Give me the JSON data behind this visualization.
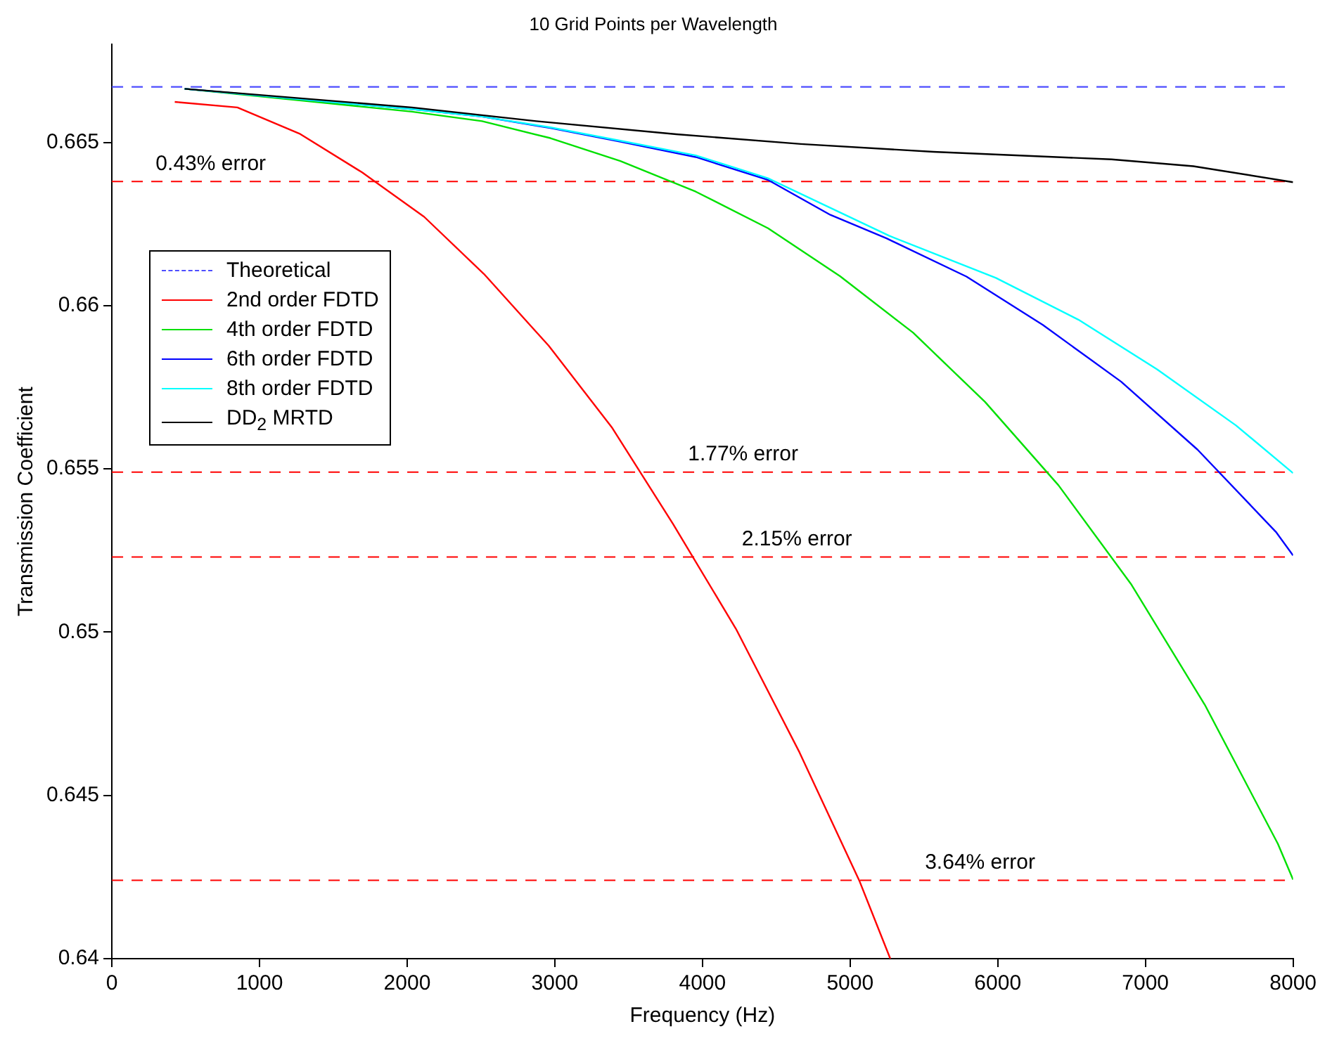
{
  "chart_data": {
    "type": "line",
    "title": "10 Grid Points per Wavelength",
    "xlabel": "Frequency (Hz)",
    "ylabel": "Transmission Coefficient",
    "xlim": [
      0,
      8000
    ],
    "xticks": [
      0,
      1000,
      2000,
      3000,
      4000,
      5000,
      6000,
      7000,
      8000
    ],
    "ylim": [
      0.64,
      0.668
    ],
    "yticks": [
      0.64,
      0.645,
      0.65,
      0.655,
      0.66,
      0.665
    ],
    "grid": false,
    "legend": "top left",
    "marker": "none",
    "series": [
      {
        "name": "Theoretical",
        "color": "#4d4dff",
        "line_style": "dashed",
        "x": [
          0,
          8000
        ],
        "values": [
          0.6667,
          0.6667
        ]
      },
      {
        "name": "2nd order FDTD",
        "color": "#ff0000",
        "x": [
          426,
          850,
          1270,
          1695,
          2115,
          2520,
          2959,
          3385,
          3801,
          4227,
          4657,
          5065,
          5272
        ],
        "values": [
          0.66624,
          0.66607,
          0.66527,
          0.66408,
          0.66272,
          0.66097,
          0.65877,
          0.65628,
          0.65331,
          0.6501,
          0.64632,
          0.64236,
          0.64
        ]
      },
      {
        "name": "4th order FDTD",
        "color": "#00e000",
        "x": [
          493,
          2032,
          2507,
          2970,
          3444,
          3955,
          4444,
          4932,
          5427,
          5914,
          6411,
          6906,
          7403,
          7897,
          8000
        ],
        "values": [
          0.66664,
          0.66594,
          0.66565,
          0.66513,
          0.66443,
          0.66349,
          0.66237,
          0.6609,
          0.65917,
          0.65705,
          0.6545,
          0.65145,
          0.64777,
          0.64352,
          0.64242
        ]
      },
      {
        "name": "6th order FDTD",
        "color": "#0000ff",
        "x": [
          493,
          2032,
          2507,
          2970,
          3444,
          3955,
          4444,
          4866,
          5247,
          5788,
          6305,
          6836,
          7353,
          7884,
          8000
        ],
        "values": [
          0.66664,
          0.66602,
          0.66579,
          0.66544,
          0.66502,
          0.66455,
          0.66385,
          0.66278,
          0.66206,
          0.66089,
          0.65941,
          0.65767,
          0.65559,
          0.65307,
          0.65235
        ]
      },
      {
        "name": "8th order FDTD",
        "color": "#00ffff",
        "x": [
          493,
          2032,
          2507,
          2970,
          3444,
          3955,
          4444,
          5264,
          5987,
          6546,
          7079,
          7614,
          8000
        ],
        "values": [
          0.66664,
          0.66602,
          0.66579,
          0.66546,
          0.66505,
          0.6646,
          0.6639,
          0.66214,
          0.66085,
          0.65957,
          0.65805,
          0.65633,
          0.65487
        ]
      },
      {
        "name": "DD$_{2}$ MRTD",
        "color": "#000000",
        "x": [
          493,
          2032,
          2874,
          3823,
          4666,
          5564,
          6771,
          7325,
          8000
        ],
        "values": [
          0.66664,
          0.66607,
          0.66565,
          0.66525,
          0.66495,
          0.66471,
          0.66448,
          0.66427,
          0.66378
        ]
      }
    ],
    "ref_lines": [
      {
        "axis": "y",
        "value": 0.6638,
        "color": "#ff0000",
        "line_style": "dashed"
      },
      {
        "axis": "y",
        "value": 0.6549,
        "color": "#ff0000",
        "line_style": "dashed"
      },
      {
        "axis": "y",
        "value": 0.6523,
        "color": "#ff0000",
        "line_style": "dashed"
      },
      {
        "axis": "y",
        "value": 0.6424,
        "color": "#ff0000",
        "line_style": "dashed"
      }
    ],
    "annotations": [
      {
        "text": "0.43% error",
        "x": 670,
        "y": 0.6638
      },
      {
        "text": "1.77% error",
        "x": 4275,
        "y": 0.6549
      },
      {
        "text": "2.15% error",
        "x": 4640,
        "y": 0.6523
      },
      {
        "text": "3.64% error",
        "x": 5880,
        "y": 0.6424
      }
    ]
  }
}
